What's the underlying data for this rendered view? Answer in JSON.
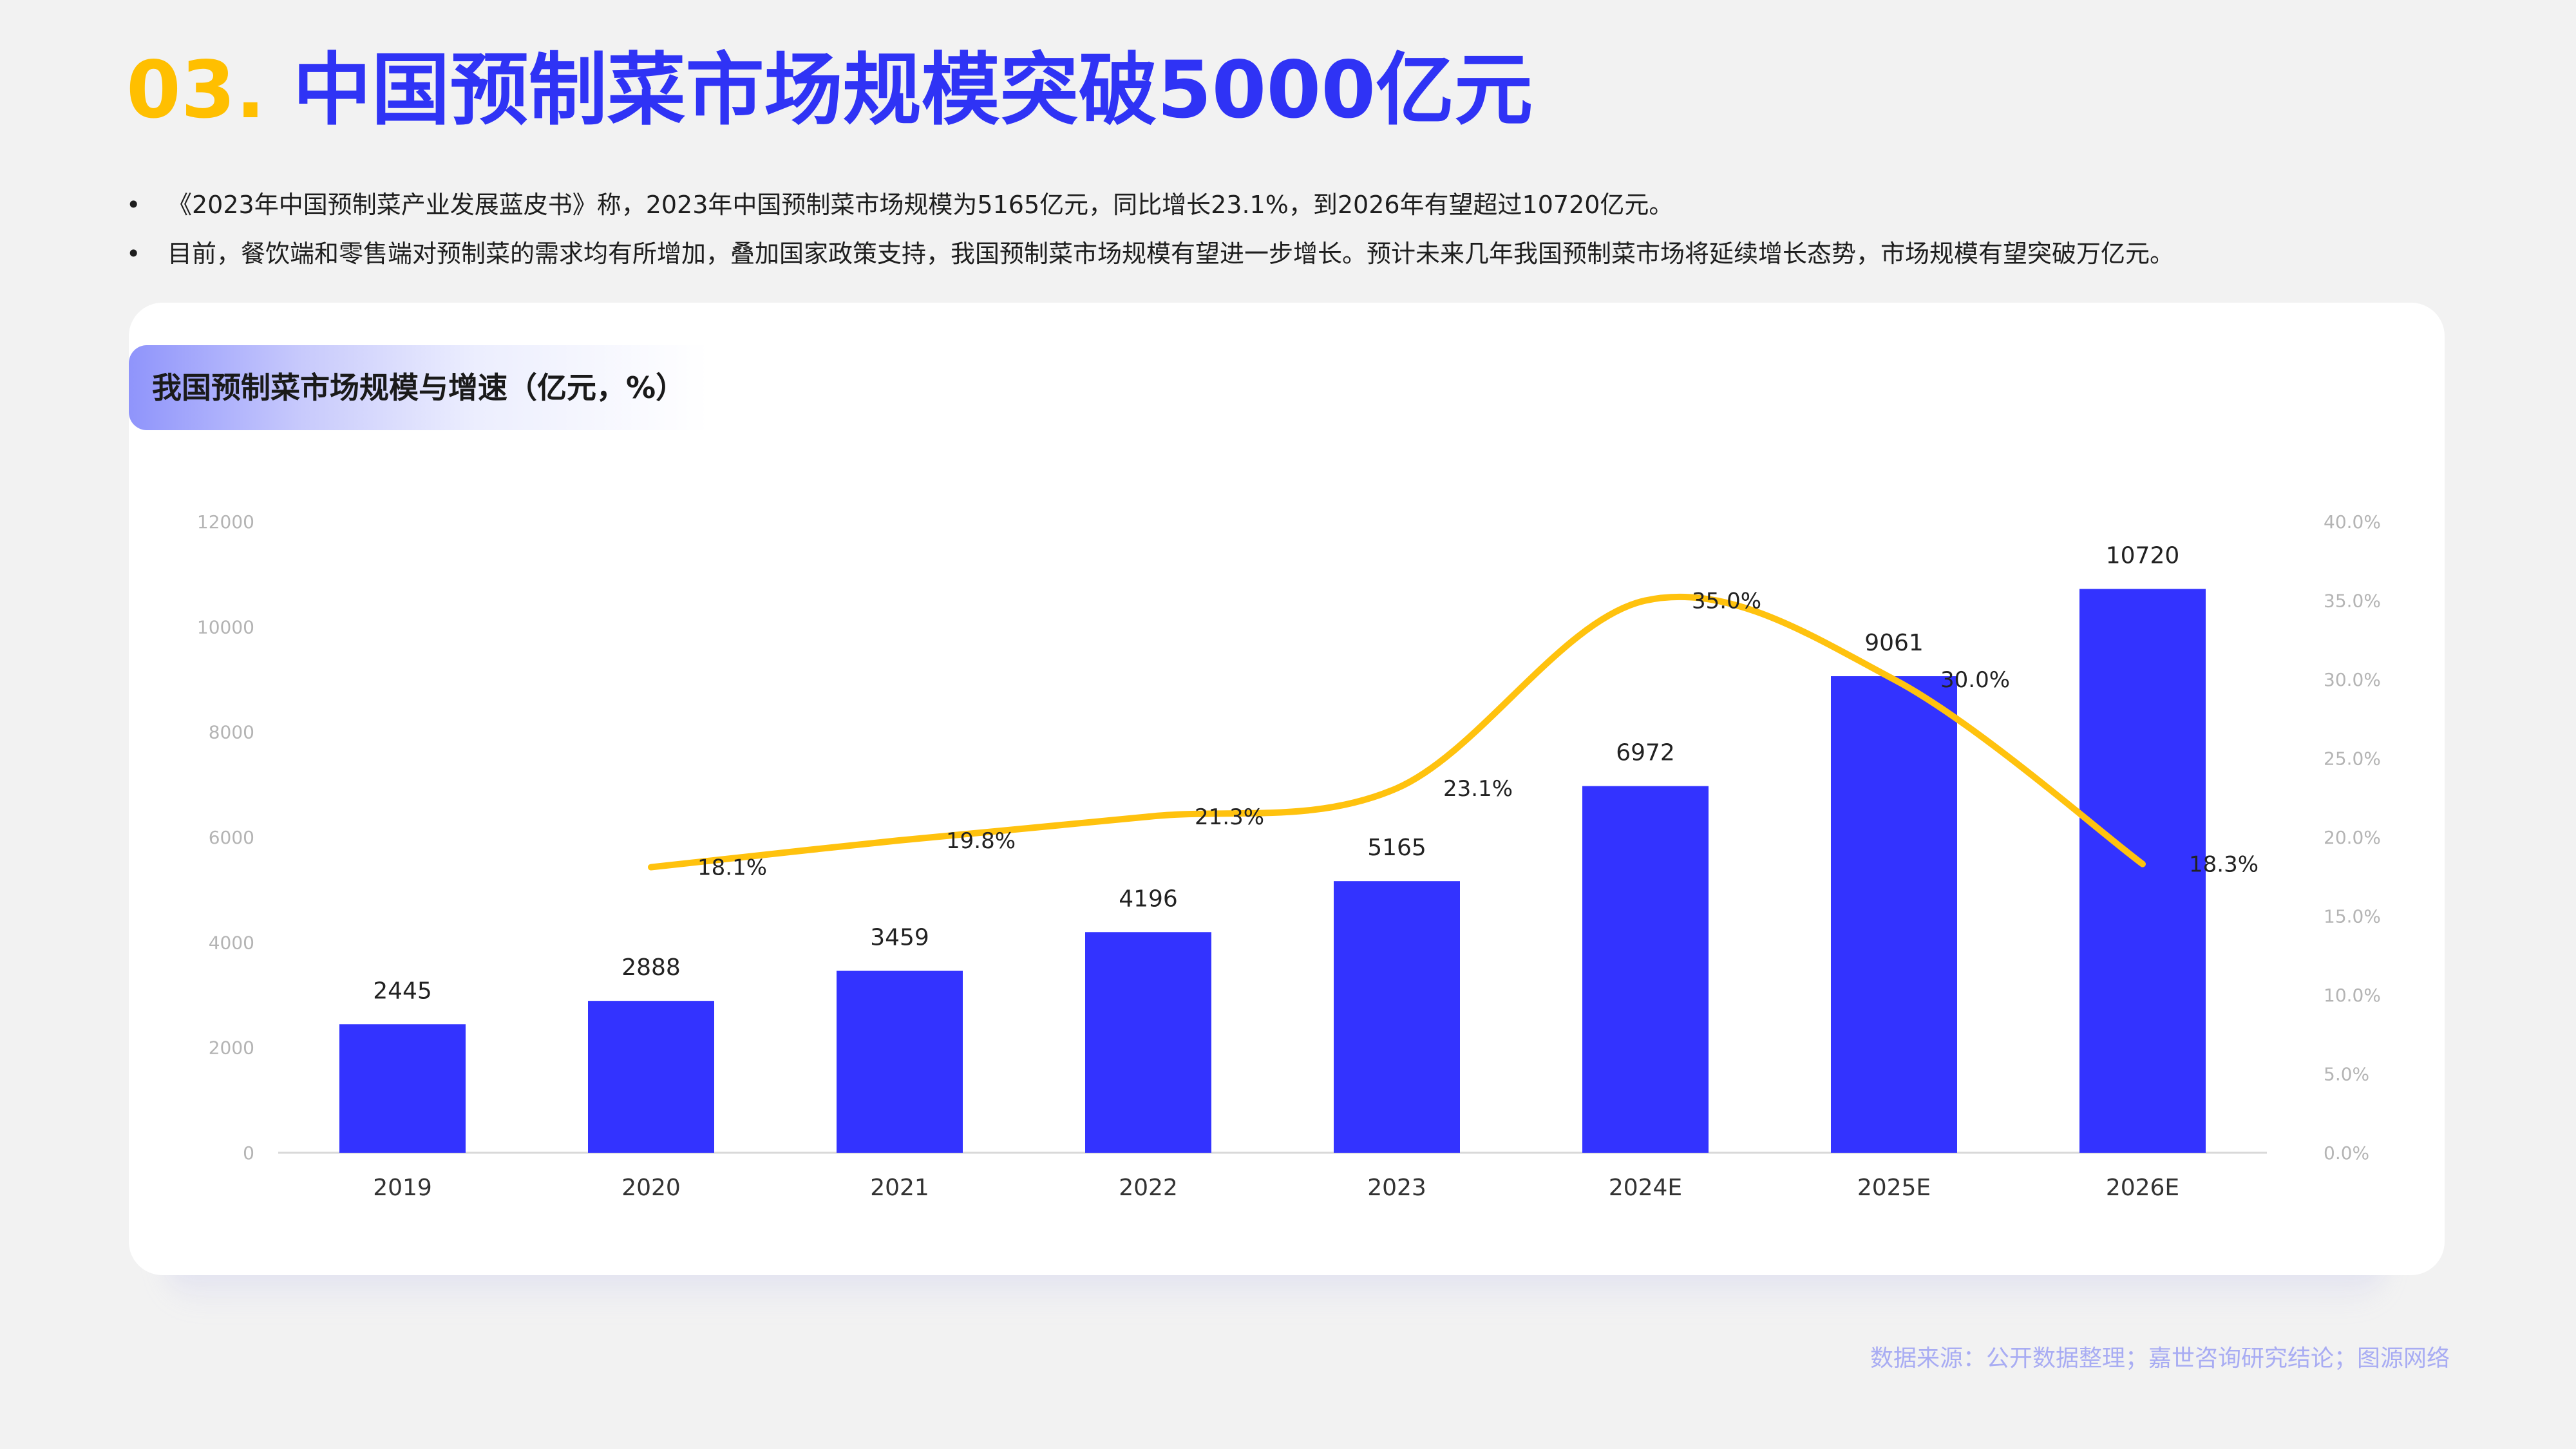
{
  "header": {
    "number": "03.",
    "title": "中国预制菜市场规模突破5000亿元"
  },
  "bullets": [
    "《2023年中国预制菜产业发展蓝皮书》称，2023年中国预制菜市场规模为5165亿元，同比增长23.1%，到2026年有望超过10720亿元。",
    "目前，餐饮端和零售端对预制菜的需求均有所增加，叠加国家政策支持，我国预制菜市场规模有望进一步增长。预计未来几年我国预制菜市场将延续增长态势，市场规模有望突破万亿元。"
  ],
  "card": {
    "title": "我国预制菜市场规模与增速（亿元，%）"
  },
  "chart_data": {
    "type": "bar",
    "title": "",
    "categories": [
      "2019",
      "2020",
      "2021",
      "2022",
      "2023",
      "2024E",
      "2025E",
      "2026E"
    ],
    "series": [
      {
        "type": "bar",
        "values": [
          2445,
          2888,
          3459,
          4196,
          5165,
          6972,
          9061,
          10720
        ],
        "color": "#3333ff"
      },
      {
        "type": "line",
        "values": [
          null,
          18.1,
          19.8,
          21.3,
          23.1,
          35.0,
          30.0,
          18.3
        ],
        "labels": [
          "",
          "18.1%",
          "19.8%",
          "21.3%",
          "23.1%",
          "35.0%",
          "30.0%",
          "18.3%"
        ],
        "color": "#ffc20e"
      }
    ],
    "y_left": {
      "min": 0,
      "max": 12000,
      "ticks": [
        "0",
        "2000",
        "4000",
        "6000",
        "8000",
        "10000",
        "12000"
      ]
    },
    "y_right": {
      "min": 0,
      "max": 40,
      "ticks": [
        "0.0%",
        "5.0%",
        "10.0%",
        "15.0%",
        "20.0%",
        "25.0%",
        "30.0%",
        "35.0%",
        "40.0%"
      ]
    },
    "grid": false,
    "legend": "none"
  },
  "footer": {
    "source": "数据来源：公开数据整理；嘉世咨询研究结论；图源网络"
  },
  "colors": {
    "accent_yellow": "#ffbf00",
    "accent_blue": "#2f33f5",
    "bar": "#3333ff",
    "line": "#ffc20e",
    "source_text": "#a8acf3"
  }
}
